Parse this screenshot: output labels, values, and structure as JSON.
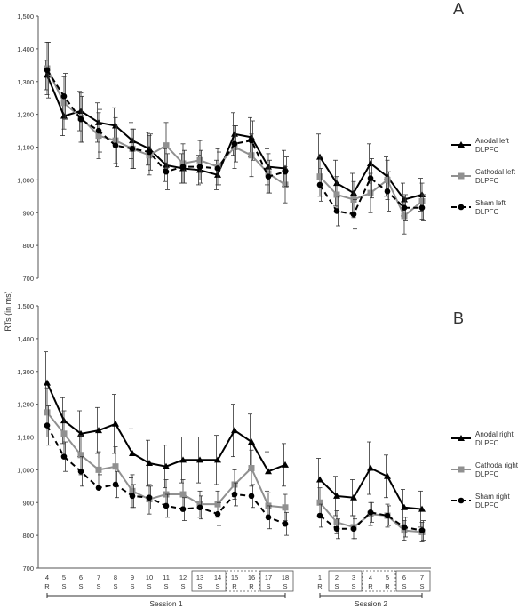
{
  "y_axis_title": "RTs (in ms)",
  "blocks": [
    "4",
    "5",
    "6",
    "7",
    "8",
    "9",
    "10",
    "11",
    "12",
    "13",
    "14",
    "15",
    "16",
    "17",
    "18",
    "1",
    "2",
    "3",
    "4",
    "5",
    "6",
    "7"
  ],
  "block_types": [
    "R",
    "S",
    "S",
    "S",
    "S",
    "S",
    "S",
    "S",
    "S",
    "S",
    "S",
    "R",
    "R",
    "S",
    "S",
    "R",
    "S",
    "S",
    "R",
    "R",
    "S",
    "S"
  ],
  "sessions": [
    {
      "label": "Session 1"
    },
    {
      "label": "Session 2"
    }
  ],
  "chart_data": [
    {
      "type": "line",
      "panel": "A",
      "ylim": [
        700,
        1500
      ],
      "yticks": [
        "700",
        "800",
        "900",
        "1,000",
        "1,100",
        "1,200",
        "1,300",
        "1,400",
        "1,500"
      ],
      "legend": "right",
      "grid": false,
      "series": [
        {
          "name": "Anodal left DLPFC",
          "marker": "triangle",
          "color": "#000000",
          "dash": "",
          "values": [
            1320,
            1195,
            1210,
            1175,
            1165,
            1120,
            1095,
            1045,
            1035,
            1030,
            1015,
            1140,
            1130,
            1040,
            1035,
            1070,
            990,
            960,
            1050,
            1010,
            940,
            955
          ],
          "errors": [
            45,
            60,
            60,
            60,
            55,
            55,
            50,
            50,
            45,
            45,
            45,
            65,
            60,
            55,
            55,
            70,
            70,
            60,
            60,
            60,
            50,
            50
          ]
        },
        {
          "name": "Cathodal left DLPFC",
          "marker": "square",
          "color": "#909090",
          "dash": "",
          "values": [
            1340,
            1235,
            1190,
            1135,
            1120,
            1095,
            1075,
            1105,
            1050,
            1060,
            1040,
            1100,
            1075,
            1020,
            985,
            1010,
            955,
            940,
            960,
            1000,
            890,
            935
          ],
          "errors": [
            80,
            80,
            75,
            70,
            70,
            60,
            60,
            70,
            60,
            60,
            55,
            65,
            65,
            60,
            55,
            60,
            55,
            55,
            60,
            60,
            55,
            55
          ]
        },
        {
          "name": "Sham left DLPFC",
          "marker": "circle",
          "color": "#000000",
          "dash": "6,4",
          "values": [
            1335,
            1255,
            1185,
            1150,
            1105,
            1095,
            1085,
            1025,
            1040,
            1040,
            1035,
            1110,
            1120,
            1010,
            1025,
            985,
            905,
            895,
            1005,
            965,
            915,
            915
          ],
          "errors": [
            85,
            70,
            70,
            65,
            65,
            60,
            55,
            55,
            50,
            50,
            50,
            55,
            60,
            50,
            45,
            50,
            45,
            45,
            60,
            60,
            40,
            40
          ]
        }
      ]
    },
    {
      "type": "line",
      "panel": "B",
      "ylim": [
        700,
        1500
      ],
      "yticks": [
        "700",
        "800",
        "900",
        "1,000",
        "1,100",
        "1,200",
        "1,300",
        "1,400",
        "1,500"
      ],
      "legend": "right",
      "grid": false,
      "series": [
        {
          "name": "Anodal right DLPFC",
          "marker": "triangle",
          "color": "#000000",
          "dash": "",
          "values": [
            1265,
            1150,
            1110,
            1120,
            1140,
            1050,
            1020,
            1010,
            1030,
            1030,
            1030,
            1120,
            1085,
            995,
            1015,
            970,
            920,
            915,
            1005,
            980,
            885,
            880
          ],
          "errors": [
            95,
            70,
            70,
            70,
            90,
            75,
            70,
            65,
            70,
            70,
            75,
            80,
            85,
            60,
            65,
            65,
            60,
            55,
            80,
            65,
            55,
            55
          ]
        },
        {
          "name": "Cathoda right DLPFC",
          "marker": "square",
          "color": "#909090",
          "dash": "",
          "values": [
            1175,
            1110,
            1045,
            1000,
            1010,
            935,
            910,
            925,
            925,
            895,
            895,
            955,
            1005,
            890,
            885,
            900,
            840,
            825,
            865,
            860,
            815,
            810
          ],
          "errors": [
            75,
            70,
            60,
            55,
            60,
            50,
            45,
            45,
            45,
            40,
            40,
            45,
            55,
            40,
            40,
            45,
            35,
            35,
            35,
            35,
            30,
            30
          ]
        },
        {
          "name": "Sham right DLPFC",
          "marker": "circle",
          "color": "#000000",
          "dash": "6,4",
          "values": [
            1135,
            1040,
            995,
            945,
            955,
            920,
            915,
            890,
            880,
            885,
            865,
            925,
            920,
            855,
            835,
            860,
            820,
            820,
            870,
            860,
            825,
            815
          ],
          "errors": [
            60,
            45,
            45,
            40,
            40,
            35,
            35,
            35,
            35,
            35,
            35,
            35,
            35,
            35,
            35,
            35,
            30,
            30,
            30,
            30,
            30,
            30
          ]
        }
      ]
    }
  ]
}
